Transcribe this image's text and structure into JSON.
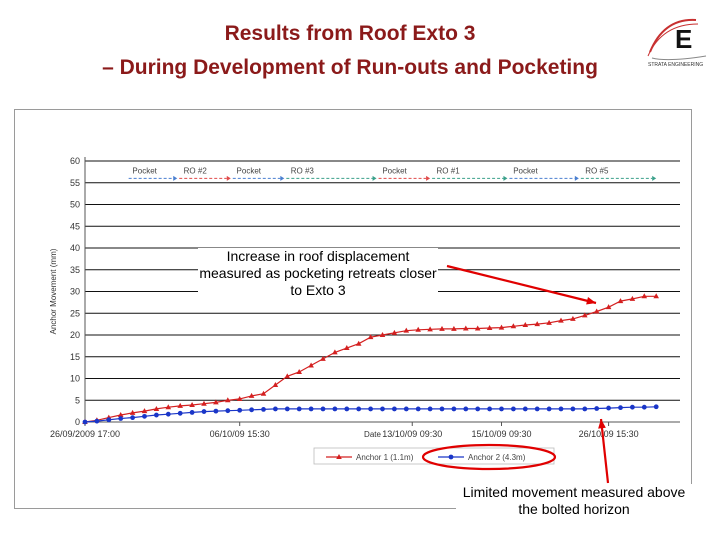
{
  "header": {
    "title_line1": "Results from Roof Exto 3",
    "title_line2": "– During Development of Run-outs and Pocketing",
    "logo_letter": "E",
    "logo_text": "STRATA ENGINEERING"
  },
  "callouts": {
    "roof": "Increase in roof displacement measured as pocketing retreats closer to Exto 3",
    "bolted": "Limited movement measured above the bolted horizon"
  },
  "chart_data": {
    "type": "line",
    "ylabel": "Anchor Movement (mm)",
    "xlabel": "Date",
    "ylim": [
      0,
      60
    ],
    "yticks": [
      0,
      5,
      10,
      15,
      20,
      25,
      30,
      35,
      40,
      45,
      50,
      55,
      60
    ],
    "ytick_labels": [
      "0",
      "5",
      "10",
      "15",
      "20",
      "25",
      "30",
      "35",
      "40",
      "45",
      "50",
      "55",
      "60"
    ],
    "xlim": [
      0,
      1
    ],
    "xticks": [
      {
        "x": 0.0,
        "label": "26/09/2009 17:00"
      },
      {
        "x": 0.26,
        "label": "06/10/09 15:30"
      },
      {
        "x": 0.55,
        "label": "13/10/09 09:30"
      },
      {
        "x": 0.7,
        "label": "15/10/09 09:30"
      },
      {
        "x": 0.88,
        "label": "26/10/09 15:30"
      }
    ],
    "phases": [
      {
        "label": "Pocket",
        "start": 0.07,
        "end": 0.155,
        "color": "#4a7fd0"
      },
      {
        "label": "RO #2",
        "start": 0.155,
        "end": 0.245,
        "color": "#e04a4a"
      },
      {
        "label": "Pocket",
        "start": 0.245,
        "end": 0.335,
        "color": "#4a7fd0"
      },
      {
        "label": "RO #3",
        "start": 0.335,
        "end": 0.49,
        "color": "#3aa08a"
      },
      {
        "label": "Pocket",
        "start": 0.49,
        "end": 0.58,
        "color": "#e04a4a"
      },
      {
        "label": "RO #1",
        "start": 0.58,
        "end": 0.71,
        "color": "#3aa08a"
      },
      {
        "label": "Pocket",
        "start": 0.71,
        "end": 0.83,
        "color": "#4a7fd0"
      },
      {
        "label": "RO #5",
        "start": 0.83,
        "end": 0.96,
        "color": "#3aa08a"
      }
    ],
    "series": [
      {
        "name": "Anchor 1 (1.1m)",
        "color": "#d42020",
        "marker": "triangle",
        "x": [
          0.0,
          0.02,
          0.04,
          0.06,
          0.08,
          0.1,
          0.12,
          0.14,
          0.16,
          0.18,
          0.2,
          0.22,
          0.24,
          0.26,
          0.28,
          0.3,
          0.32,
          0.34,
          0.36,
          0.38,
          0.4,
          0.42,
          0.44,
          0.46,
          0.48,
          0.5,
          0.52,
          0.54,
          0.56,
          0.58,
          0.6,
          0.62,
          0.64,
          0.66,
          0.68,
          0.7,
          0.72,
          0.74,
          0.76,
          0.78,
          0.8,
          0.82,
          0.84,
          0.86,
          0.88,
          0.9,
          0.92,
          0.94,
          0.96
        ],
        "values": [
          0.0,
          0.4,
          1.0,
          1.6,
          2.1,
          2.5,
          3.0,
          3.4,
          3.7,
          3.9,
          4.2,
          4.5,
          5.0,
          5.3,
          6.0,
          6.5,
          8.5,
          10.5,
          11.5,
          13.0,
          14.5,
          16.0,
          17.0,
          18.0,
          19.5,
          20.0,
          20.5,
          21.0,
          21.2,
          21.3,
          21.4,
          21.4,
          21.5,
          21.5,
          21.6,
          21.7,
          22.0,
          22.3,
          22.5,
          22.8,
          23.3,
          23.7,
          24.5,
          25.4,
          26.4,
          27.8,
          28.3,
          28.9,
          28.9
        ]
      },
      {
        "name": "Anchor 2 (4.3m)",
        "color": "#1a36c8",
        "marker": "circle",
        "x": [
          0.0,
          0.02,
          0.04,
          0.06,
          0.08,
          0.1,
          0.12,
          0.14,
          0.16,
          0.18,
          0.2,
          0.22,
          0.24,
          0.26,
          0.28,
          0.3,
          0.32,
          0.34,
          0.36,
          0.38,
          0.4,
          0.42,
          0.44,
          0.46,
          0.48,
          0.5,
          0.52,
          0.54,
          0.56,
          0.58,
          0.6,
          0.62,
          0.64,
          0.66,
          0.68,
          0.7,
          0.72,
          0.74,
          0.76,
          0.78,
          0.8,
          0.82,
          0.84,
          0.86,
          0.88,
          0.9,
          0.92,
          0.94,
          0.96
        ],
        "values": [
          0.0,
          0.2,
          0.5,
          0.8,
          1.0,
          1.3,
          1.6,
          1.8,
          2.0,
          2.2,
          2.4,
          2.5,
          2.6,
          2.7,
          2.8,
          2.9,
          3.0,
          3.0,
          3.0,
          3.0,
          3.0,
          3.0,
          3.0,
          3.0,
          3.0,
          3.0,
          3.0,
          3.0,
          3.0,
          3.0,
          3.0,
          3.0,
          3.0,
          3.0,
          3.0,
          3.0,
          3.0,
          3.0,
          3.0,
          3.0,
          3.0,
          3.0,
          3.0,
          3.1,
          3.2,
          3.3,
          3.4,
          3.4,
          3.5
        ]
      }
    ],
    "legend": "bottom",
    "grid": true
  },
  "colors": {
    "title": "#8b1a1a",
    "arrow": "#e00000",
    "legend_highlight": "#e00000"
  }
}
